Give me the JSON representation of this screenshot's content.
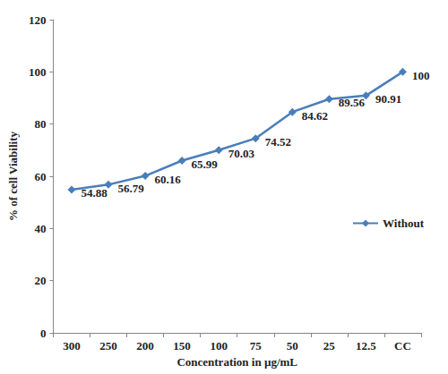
{
  "chart_data": {
    "type": "line",
    "x_label": "Concentration in µg/mL",
    "y_label": "% of cell Viability",
    "categories": [
      "300",
      "250",
      "200",
      "150",
      "100",
      "75",
      "50",
      "25",
      "12.5",
      "CC"
    ],
    "series": [
      {
        "name": "Without",
        "color": "#4a7ebb",
        "marker": "diamond",
        "line_style": "solid",
        "values": [
          54.88,
          56.79,
          60.16,
          65.99,
          70.03,
          74.52,
          84.62,
          89.56,
          90.91,
          100
        ]
      }
    ],
    "ylim": [
      0,
      120
    ],
    "yticks": [
      0,
      20,
      40,
      60,
      80,
      100,
      120
    ],
    "grid": false,
    "legend": "right",
    "data_labels": true
  }
}
